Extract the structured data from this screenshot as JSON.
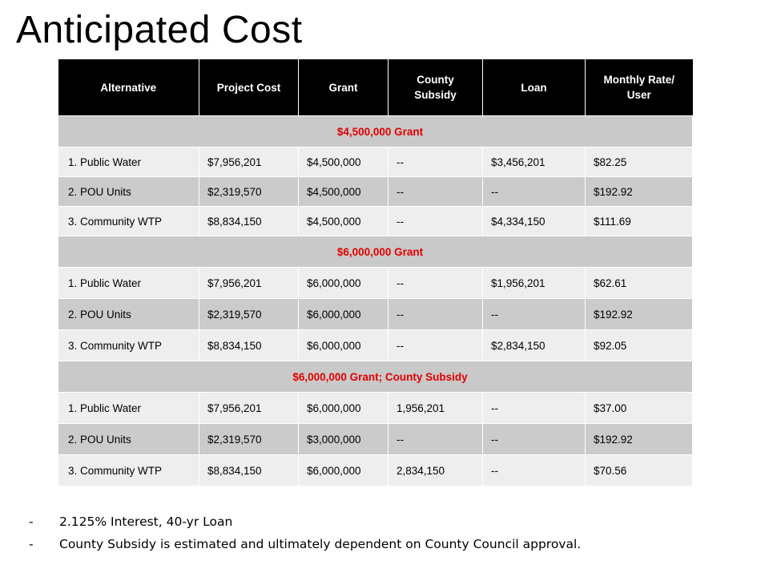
{
  "title": "Anticipated Cost",
  "table": {
    "headers": [
      "Alternative",
      "Project Cost",
      "Grant",
      "County Subsidy",
      "Loan",
      "Monthly Rate/ User"
    ],
    "groups": [
      {
        "label": "$4,500,000 Grant",
        "rows": [
          [
            "1. Public Water",
            "$7,956,201",
            "$4,500,000",
            "--",
            "$3,456,201",
            "$82.25"
          ],
          [
            "2. POU Units",
            "$2,319,570",
            "$4,500,000",
            "--",
            "--",
            "$192.92"
          ],
          [
            "3. Community WTP",
            "$8,834,150",
            "$4,500,000",
            "--",
            "$4,334,150",
            "$111.69"
          ]
        ]
      },
      {
        "label": "$6,000,000 Grant",
        "rows": [
          [
            "1. Public Water",
            "$7,956,201",
            "$6,000,000",
            "--",
            "$1,956,201",
            "$62.61"
          ],
          [
            "2. POU Units",
            "$2,319,570",
            "$6,000,000",
            "--",
            "--",
            "$192.92"
          ],
          [
            "3. Community WTP",
            "$8,834,150",
            "$6,000,000",
            "--",
            "$2,834,150",
            "$92.05"
          ]
        ]
      },
      {
        "label": "$6,000,000 Grant; County Subsidy",
        "rows": [
          [
            "1. Public Water",
            "$7,956,201",
            "$6,000,000",
            "1,956,201",
            "--",
            "$37.00"
          ],
          [
            "2. POU Units",
            "$2,319,570",
            "$3,000,000",
            "--",
            "--",
            "$192.92"
          ],
          [
            "3. Community WTP",
            "$8,834,150",
            "$6,000,000",
            "2,834,150",
            "--",
            "$70.56"
          ]
        ]
      }
    ]
  },
  "notes": [
    {
      "bullet": "-",
      "text": "2.125% Interest, 40-yr Loan"
    },
    {
      "bullet": "-",
      "text": "County Subsidy is estimated and ultimately dependent on County Council approval."
    }
  ],
  "colors": {
    "header_bg": "#000000",
    "group_bg": "#c9c9c9",
    "group_text": "#e00000",
    "row_light": "#eeeeee",
    "row_dark": "#cbcbcb"
  }
}
